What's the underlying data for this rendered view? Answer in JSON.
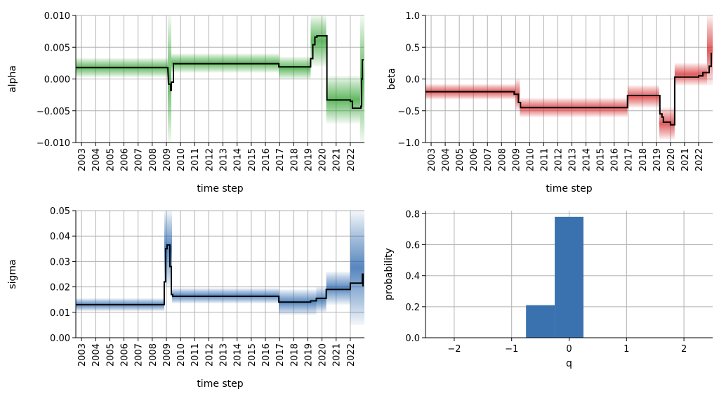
{
  "chart_data": [
    {
      "type": "line",
      "ylabel": "alpha",
      "xlabel": "time step",
      "ylim": [
        -0.01,
        0.01
      ],
      "yticks": [
        -0.01,
        -0.005,
        0.0,
        0.005,
        0.01
      ],
      "ytick_labels": [
        "−0.010",
        "−0.005",
        "0.000",
        "0.005",
        "0.010"
      ],
      "xticks": [
        2003,
        2004,
        2005,
        2006,
        2007,
        2008,
        2009,
        2010,
        2011,
        2012,
        2013,
        2014,
        2015,
        2016,
        2017,
        2018,
        2019,
        2020,
        2021,
        2022
      ],
      "xlim": [
        2002.6,
        2023.0
      ],
      "grid": true,
      "band_color": "#2ca02c",
      "band": [
        {
          "x0": 2002.6,
          "x1": 2009.1,
          "lo": 0.0003,
          "hi": 0.0033
        },
        {
          "x0": 2009.1,
          "x1": 2009.35,
          "lo": -0.01,
          "hi": 0.01
        },
        {
          "x0": 2009.35,
          "x1": 2016.95,
          "lo": 0.001,
          "hi": 0.004
        },
        {
          "x0": 2016.95,
          "x1": 2019.2,
          "lo": 0.0,
          "hi": 0.0035
        },
        {
          "x0": 2019.2,
          "x1": 2020.3,
          "lo": 0.002,
          "hi": 0.01
        },
        {
          "x0": 2020.3,
          "x1": 2022.7,
          "lo": -0.007,
          "hi": 0.0005
        },
        {
          "x0": 2022.7,
          "x1": 2023.0,
          "lo": -0.01,
          "hi": 0.01
        }
      ],
      "line": {
        "x": [
          2002.6,
          2009.1,
          2009.15,
          2009.3,
          2009.3,
          2009.35,
          2009.35,
          2009.5,
          2009.5,
          2016.95,
          2016.95,
          2019.2,
          2019.2,
          2019.35,
          2019.35,
          2019.5,
          2019.5,
          2019.65,
          2019.65,
          2020.35,
          2020.35,
          2022.0,
          2022.0,
          2022.15,
          2022.15,
          2022.75,
          2022.75,
          2022.8,
          2022.8,
          2022.85,
          2022.85,
          2022.95
        ],
        "y": [
          0.0018,
          0.0018,
          -0.0008,
          -0.0008,
          -0.0018,
          -0.0018,
          -0.0005,
          -0.0005,
          0.0024,
          0.0024,
          0.0019,
          0.0019,
          0.0032,
          0.0032,
          0.0054,
          0.0054,
          0.0066,
          0.0066,
          0.0068,
          0.0068,
          -0.0033,
          -0.0033,
          -0.0035,
          -0.0035,
          -0.0046,
          -0.0046,
          -0.0043,
          -0.0043,
          0.0,
          0.0,
          0.003,
          0.003
        ]
      }
    },
    {
      "type": "line",
      "ylabel": "beta",
      "xlabel": "time step",
      "ylim": [
        -1.0,
        1.0
      ],
      "yticks": [
        -1.0,
        -0.5,
        0.0,
        0.5,
        1.0
      ],
      "ytick_labels": [
        "−1.0",
        "−0.5",
        "0.0",
        "0.5",
        "1.0"
      ],
      "xticks": [
        2003,
        2004,
        2005,
        2006,
        2007,
        2008,
        2009,
        2010,
        2011,
        2012,
        2013,
        2014,
        2015,
        2016,
        2017,
        2018,
        2019,
        2020,
        2021,
        2022
      ],
      "xlim": [
        2002.6,
        2023.0
      ],
      "grid": true,
      "band_color": "#d62728",
      "band": [
        {
          "x0": 2002.6,
          "x1": 2009.0,
          "lo": -0.32,
          "hi": -0.08
        },
        {
          "x0": 2009.0,
          "x1": 2009.3,
          "lo": -0.5,
          "hi": 0.0
        },
        {
          "x0": 2009.3,
          "x1": 2016.95,
          "lo": -0.6,
          "hi": -0.3
        },
        {
          "x0": 2016.95,
          "x1": 2019.2,
          "lo": -0.45,
          "hi": -0.1
        },
        {
          "x0": 2019.2,
          "x1": 2020.3,
          "lo": -0.95,
          "hi": -0.45
        },
        {
          "x0": 2020.3,
          "x1": 2022.6,
          "lo": -0.1,
          "hi": 0.25
        },
        {
          "x0": 2022.6,
          "x1": 2023.0,
          "lo": -0.1,
          "hi": 1.0
        }
      ],
      "line": {
        "x": [
          2002.6,
          2008.9,
          2008.9,
          2009.2,
          2009.2,
          2009.35,
          2009.35,
          2016.95,
          2016.95,
          2019.25,
          2019.25,
          2019.4,
          2019.4,
          2019.5,
          2019.5,
          2020.0,
          2020.0,
          2020.3,
          2020.3,
          2022.0,
          2022.0,
          2022.3,
          2022.3,
          2022.75,
          2022.75,
          2022.9,
          2022.9,
          2022.95
        ],
        "y": [
          -0.2,
          -0.2,
          -0.24,
          -0.24,
          -0.37,
          -0.37,
          -0.45,
          -0.45,
          -0.26,
          -0.26,
          -0.55,
          -0.55,
          -0.6,
          -0.6,
          -0.68,
          -0.68,
          -0.72,
          -0.72,
          0.03,
          0.03,
          0.05,
          0.05,
          0.1,
          0.1,
          0.2,
          0.2,
          0.4,
          0.4
        ]
      }
    },
    {
      "type": "line",
      "ylabel": "sigma",
      "xlabel": "time step",
      "ylim": [
        0.0,
        0.05
      ],
      "yticks": [
        0.0,
        0.01,
        0.02,
        0.03,
        0.04,
        0.05
      ],
      "ytick_labels": [
        "0.00",
        "0.01",
        "0.02",
        "0.03",
        "0.04",
        "0.05"
      ],
      "xticks": [
        2003,
        2004,
        2005,
        2006,
        2007,
        2008,
        2009,
        2010,
        2011,
        2012,
        2013,
        2014,
        2015,
        2016,
        2017,
        2018,
        2019,
        2020,
        2021,
        2022
      ],
      "xlim": [
        2002.6,
        2023.0
      ],
      "grid": true,
      "band_color": "#1f5fa8",
      "band": [
        {
          "x0": 2002.6,
          "x1": 2008.85,
          "lo": 0.0105,
          "hi": 0.0155
        },
        {
          "x0": 2008.85,
          "x1": 2009.4,
          "lo": 0.02,
          "hi": 0.05
        },
        {
          "x0": 2009.4,
          "x1": 2016.95,
          "lo": 0.0135,
          "hi": 0.0195
        },
        {
          "x0": 2016.95,
          "x1": 2019.6,
          "lo": 0.009,
          "hi": 0.019
        },
        {
          "x0": 2019.6,
          "x1": 2020.3,
          "lo": 0.01,
          "hi": 0.02
        },
        {
          "x0": 2020.3,
          "x1": 2022.0,
          "lo": 0.013,
          "hi": 0.026
        },
        {
          "x0": 2022.0,
          "x1": 2023.0,
          "lo": 0.005,
          "hi": 0.05
        }
      ],
      "line": {
        "x": [
          2002.6,
          2008.85,
          2008.85,
          2008.95,
          2008.95,
          2009.05,
          2009.05,
          2009.25,
          2009.25,
          2009.35,
          2009.35,
          2009.45,
          2009.45,
          2016.95,
          2016.95,
          2019.2,
          2019.2,
          2019.6,
          2019.6,
          2020.3,
          2020.3,
          2022.0,
          2022.0,
          2022.85,
          2022.85,
          2022.9,
          2022.9,
          2022.95
        ],
        "y": [
          0.013,
          0.013,
          0.022,
          0.022,
          0.035,
          0.035,
          0.0365,
          0.0365,
          0.028,
          0.028,
          0.017,
          0.017,
          0.0163,
          0.0163,
          0.014,
          0.014,
          0.0145,
          0.0145,
          0.0155,
          0.0155,
          0.019,
          0.019,
          0.0215,
          0.0215,
          0.025,
          0.025,
          0.0205,
          0.0205
        ]
      }
    },
    {
      "type": "bar",
      "xlabel": "q",
      "ylabel": "probability",
      "xlim": [
        -2.5,
        2.5
      ],
      "ylim": [
        0.0,
        0.82
      ],
      "xticks": [
        -2,
        -1,
        0,
        1,
        2
      ],
      "xtick_labels": [
        "−2",
        "−1",
        "0",
        "1",
        "2"
      ],
      "yticks": [
        0.0,
        0.2,
        0.4,
        0.6,
        0.8
      ],
      "ytick_labels": [
        "0.0",
        "0.2",
        "0.4",
        "0.6",
        "0.8"
      ],
      "grid": true,
      "bar_color": "#3a72b0",
      "categories": [
        -0.5,
        0.0
      ],
      "values": [
        0.21,
        0.78
      ]
    }
  ]
}
